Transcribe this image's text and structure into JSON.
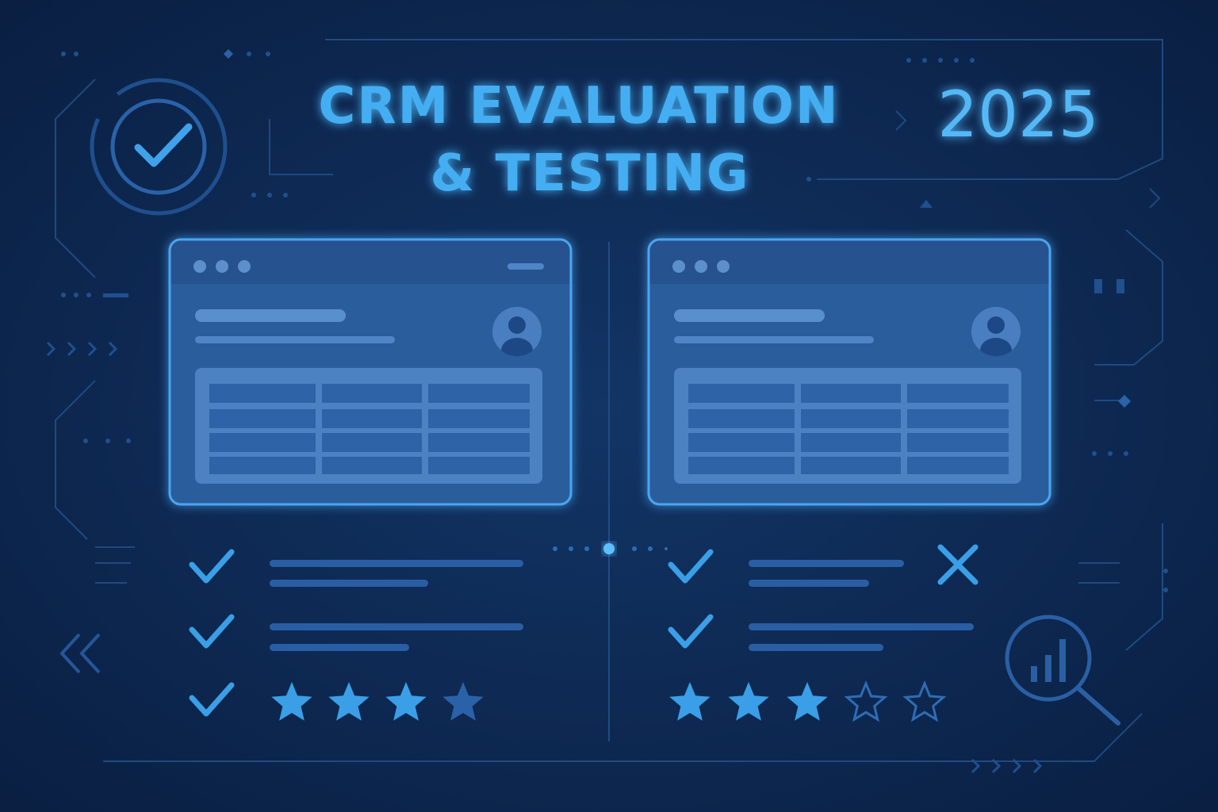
{
  "header": {
    "title_line1": "CRM EVALUATION",
    "title_line2": "& TESTING",
    "year": "2025"
  }
}
